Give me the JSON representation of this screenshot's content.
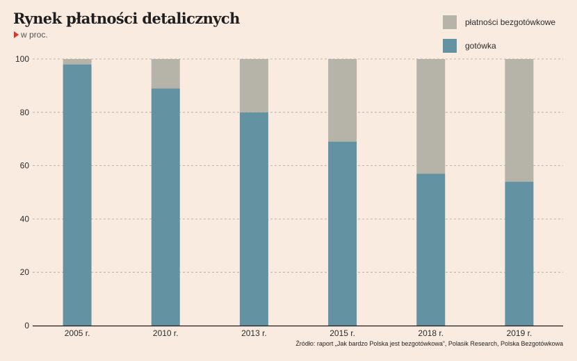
{
  "header": {
    "title": "Rynek płatności detalicznych",
    "subtitle": "w proc."
  },
  "legend": [
    {
      "label": "płatności bezgotówkowe",
      "color": "#b6b3a8"
    },
    {
      "label": "gotówka",
      "color": "#6392a3"
    }
  ],
  "chart_data": {
    "type": "bar",
    "stacked": true,
    "title": "Rynek płatności detalicznych",
    "ylabel": "w proc.",
    "xlabel": "",
    "ylim": [
      0,
      100
    ],
    "yticks": [
      0,
      20,
      40,
      60,
      80,
      100
    ],
    "grid": true,
    "categories": [
      "2005 r.",
      "2010 r.",
      "2013 r.",
      "2015 r.",
      "2018 r.",
      "2019 r."
    ],
    "series": [
      {
        "name": "gotówka",
        "color": "#6392a3",
        "values": [
          98,
          89,
          80,
          69,
          57,
          54
        ]
      },
      {
        "name": "płatności bezgotówkowe",
        "color": "#b6b3a8",
        "values": [
          2,
          11,
          20,
          31,
          43,
          46
        ]
      }
    ],
    "legend_position": "top-right"
  },
  "footer": {
    "source": "Źródło: raport „Jak bardzo Polska jest bezgotówkowa”, Polasik Research, Polska Bezgotówkowa"
  }
}
